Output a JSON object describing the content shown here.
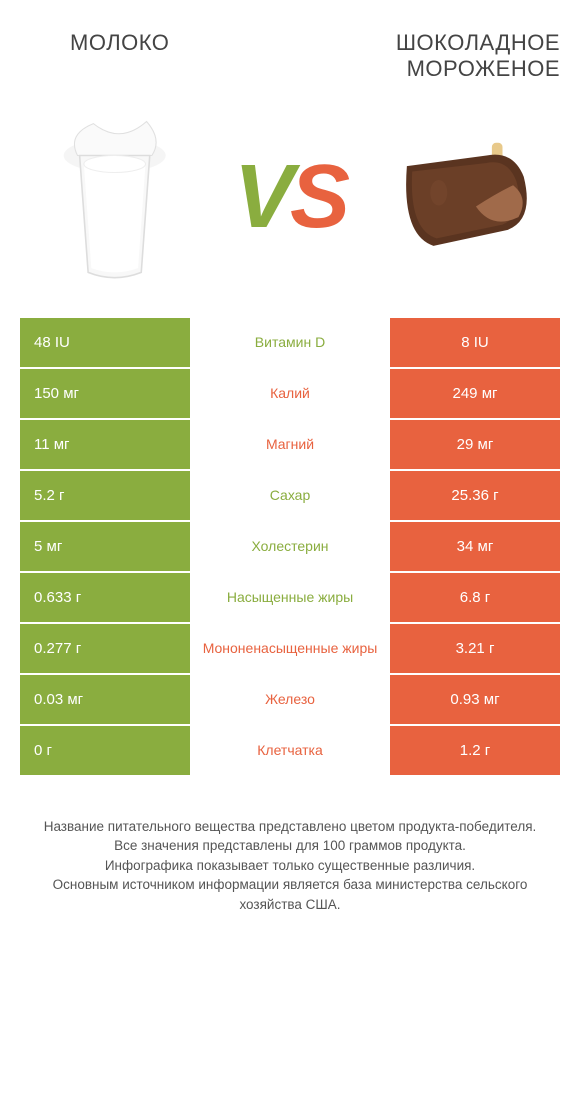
{
  "header": {
    "left_title": "МОЛОКО",
    "right_title_line1": "ШОКОЛАДНОЕ",
    "right_title_line2": "МОРОЖЕНОЕ"
  },
  "vs": {
    "v": "V",
    "s": "S"
  },
  "colors": {
    "green": "#8aad3f",
    "orange": "#e8623f",
    "background": "#ffffff",
    "text": "#333333"
  },
  "images": {
    "left_alt": "milk-glass",
    "right_alt": "chocolate-ice-cream-bar"
  },
  "table": {
    "left_color": "#8aad3f",
    "right_color": "#e8623f",
    "rows": [
      {
        "left": "48 IU",
        "label": "Витамин D",
        "right": "8 IU",
        "winner": "left"
      },
      {
        "left": "150 мг",
        "label": "Калий",
        "right": "249 мг",
        "winner": "right"
      },
      {
        "left": "11 мг",
        "label": "Магний",
        "right": "29 мг",
        "winner": "right"
      },
      {
        "left": "5.2 г",
        "label": "Сахар",
        "right": "25.36 г",
        "winner": "left"
      },
      {
        "left": "5 мг",
        "label": "Холестерин",
        "right": "34 мг",
        "winner": "left"
      },
      {
        "left": "0.633 г",
        "label": "Насыщенные жиры",
        "right": "6.8 г",
        "winner": "left"
      },
      {
        "left": "0.277 г",
        "label": "Мононенасыщенные жиры",
        "right": "3.21 г",
        "winner": "right"
      },
      {
        "left": "0.03 мг",
        "label": "Железо",
        "right": "0.93 мг",
        "winner": "right"
      },
      {
        "left": "0 г",
        "label": "Клетчатка",
        "right": "1.2 г",
        "winner": "right"
      }
    ]
  },
  "footer": {
    "line1": "Название питательного вещества представлено цветом продукта-победителя.",
    "line2": "Все значения представлены для 100 граммов продукта.",
    "line3": "Инфографика показывает только существенные различия.",
    "line4": "Основным источником информации является база министерства сельского хозяйства США."
  }
}
